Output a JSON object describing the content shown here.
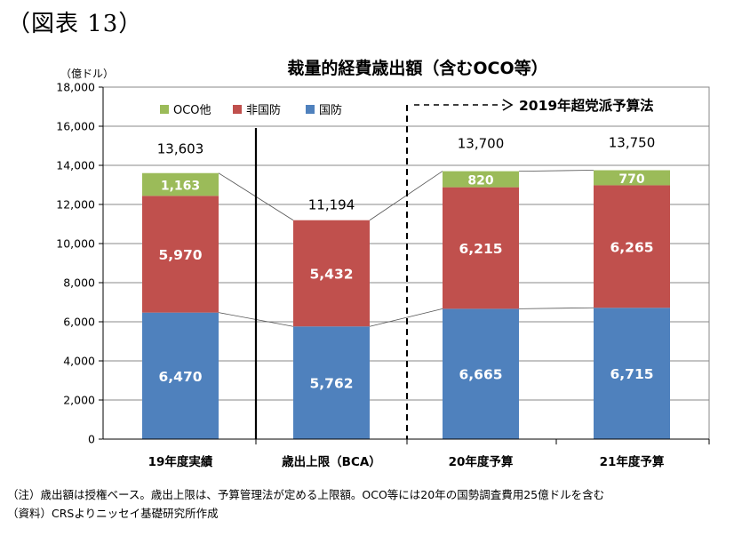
{
  "figure_label": "（図表 13）",
  "notes": {
    "note": "（注）歳出額は授権ベース。歳出上限は、予算管理法が定める上限額。OCO等には20年の国勢調査費用25億ドルを含む",
    "source": "（資料）CRSよりニッセイ基礎研究所作成"
  },
  "colors": {
    "defense": "#4f81bd",
    "non_defense": "#c0504d",
    "oco": "#9bbb59",
    "grid": "#888888"
  },
  "chart_data": {
    "type": "bar",
    "stacked": true,
    "title": "裁量的経費歳出額（含むOCO等）",
    "unit_label": "（億ドル）",
    "categories": [
      "19年度実績",
      "歳出上限（BCA）",
      "20年度予算",
      "21年度予算"
    ],
    "series": [
      {
        "name": "国防",
        "values": [
          6470,
          5762,
          6665,
          6715
        ],
        "labels": [
          "6,470",
          "5,762",
          "6,665",
          "6,715"
        ]
      },
      {
        "name": "非国防",
        "values": [
          5970,
          5432,
          6215,
          6265
        ],
        "labels": [
          "5,970",
          "5,432",
          "6,215",
          "6,265"
        ]
      },
      {
        "name": "OCO他",
        "values": [
          1163,
          0,
          820,
          770
        ],
        "labels": [
          "1,163",
          "",
          "820",
          "770"
        ]
      }
    ],
    "totals": [
      13603,
      11194,
      13700,
      13750
    ],
    "total_labels": [
      "13,603",
      "11,194",
      "13,700",
      "13,750"
    ],
    "ylim": [
      0,
      18000
    ],
    "yticks": [
      0,
      2000,
      4000,
      6000,
      8000,
      10000,
      12000,
      14000,
      16000,
      18000
    ],
    "ytick_labels": [
      "0",
      "2,000",
      "4,000",
      "6,000",
      "8,000",
      "10,000",
      "12,000",
      "14,000",
      "16,000",
      "18,000"
    ],
    "legend_order": [
      "OCO他",
      "非国防",
      "国防"
    ],
    "legend_position": "top-left",
    "grid": true,
    "annotation": "2019年超党派予算法"
  }
}
